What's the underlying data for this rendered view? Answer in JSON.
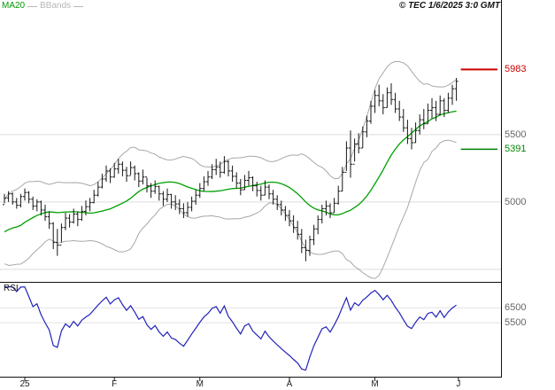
{
  "header": {
    "legend": [
      {
        "label": "MA20",
        "color": "#009900"
      },
      {
        "label": "BBands",
        "color": "#b8b8b8"
      }
    ],
    "copyright": "© TEC 1/6/2025 3:0 GMT"
  },
  "rsi_label": "RSI",
  "chart_data": [
    {
      "type": "candlestick",
      "name": "price-panel",
      "bar_format": [
        "high",
        "low",
        "close"
      ],
      "bar_color": "#161616",
      "ylim": [
        4420,
        6400
      ],
      "gridlines": [
        5500,
        5000,
        4500
      ],
      "y_labels": [
        {
          "text": "5983",
          "value": 5983,
          "color": "#cc0000"
        },
        {
          "text": "5500",
          "value": 5500,
          "color": "#666666"
        },
        {
          "text": "5391",
          "value": 5391,
          "color": "#008800"
        },
        {
          "text": "5000",
          "value": 5000,
          "color": "#666666"
        }
      ],
      "hlines": [
        {
          "name": "resistance",
          "value": 5983,
          "color": "#cc0000",
          "width": 2
        },
        {
          "name": "support",
          "value": 5391,
          "color": "#008000",
          "width": 1.5
        }
      ],
      "indicators": [
        {
          "name": "MA20",
          "type": "sma",
          "period": 20,
          "color": "#00a000"
        },
        {
          "name": "BBands",
          "type": "bollinger",
          "period": 20,
          "stddev": 2,
          "color": "#a8a8a8"
        }
      ],
      "x_ticks": [
        {
          "label": "25",
          "index": 5
        },
        {
          "label": "F",
          "index": 27
        },
        {
          "label": "M",
          "index": 48
        },
        {
          "label": "A",
          "index": 70
        },
        {
          "label": "M",
          "index": 91
        },
        {
          "label": "J",
          "index": 111.5
        }
      ],
      "seed_closes": [
        4620,
        4650,
        4640,
        4680,
        4710,
        4690,
        4730,
        4760,
        4740,
        4780,
        4810,
        4840,
        4870,
        4920,
        4980
      ],
      "bars": [
        [
          5060,
          4990,
          5030
        ],
        [
          5080,
          5000,
          5060
        ],
        [
          5070,
          4980,
          5000
        ],
        [
          5030,
          4950,
          4975
        ],
        [
          5060,
          4960,
          5040
        ],
        [
          5100,
          5010,
          5070
        ],
        [
          5080,
          4990,
          5020
        ],
        [
          5040,
          4940,
          4970
        ],
        [
          5020,
          4930,
          5000
        ],
        [
          5010,
          4900,
          4940
        ],
        [
          4980,
          4860,
          4890
        ],
        [
          4930,
          4800,
          4840
        ],
        [
          4850,
          4650,
          4700
        ],
        [
          4800,
          4600,
          4680
        ],
        [
          4840,
          4700,
          4810
        ],
        [
          4920,
          4790,
          4880
        ],
        [
          4910,
          4810,
          4850
        ],
        [
          4950,
          4840,
          4910
        ],
        [
          4930,
          4820,
          4870
        ],
        [
          4970,
          4860,
          4930
        ],
        [
          5010,
          4900,
          4965
        ],
        [
          5030,
          4930,
          4995
        ],
        [
          5090,
          4990,
          5050
        ],
        [
          5150,
          5040,
          5110
        ],
        [
          5210,
          5100,
          5170
        ],
        [
          5270,
          5150,
          5230
        ],
        [
          5250,
          5140,
          5185
        ],
        [
          5290,
          5180,
          5245
        ],
        [
          5320,
          5210,
          5280
        ],
        [
          5300,
          5190,
          5235
        ],
        [
          5260,
          5150,
          5195
        ],
        [
          5300,
          5200,
          5255
        ],
        [
          5270,
          5160,
          5210
        ],
        [
          5220,
          5110,
          5155
        ],
        [
          5240,
          5130,
          5185
        ],
        [
          5180,
          5070,
          5120
        ],
        [
          5140,
          5030,
          5080
        ],
        [
          5160,
          5060,
          5115
        ],
        [
          5120,
          5010,
          5060
        ],
        [
          5080,
          4970,
          5020
        ],
        [
          5100,
          5000,
          5055
        ],
        [
          5060,
          4950,
          5000
        ],
        [
          5050,
          4940,
          4985
        ],
        [
          5020,
          4910,
          4950
        ],
        [
          4990,
          4880,
          4920
        ],
        [
          5000,
          4890,
          4960
        ],
        [
          5040,
          4930,
          5005
        ],
        [
          5090,
          4980,
          5050
        ],
        [
          5140,
          5030,
          5100
        ],
        [
          5190,
          5080,
          5150
        ],
        [
          5230,
          5120,
          5185
        ],
        [
          5280,
          5170,
          5240
        ],
        [
          5320,
          5200,
          5260
        ],
        [
          5300,
          5180,
          5220
        ],
        [
          5340,
          5210,
          5300
        ],
        [
          5310,
          5190,
          5230
        ],
        [
          5270,
          5150,
          5190
        ],
        [
          5220,
          5100,
          5140
        ],
        [
          5170,
          5050,
          5090
        ],
        [
          5200,
          5090,
          5160
        ],
        [
          5230,
          5120,
          5180
        ],
        [
          5190,
          5080,
          5120
        ],
        [
          5150,
          5040,
          5085
        ],
        [
          5120,
          5010,
          5050
        ],
        [
          5160,
          5050,
          5110
        ],
        [
          5130,
          5020,
          5060
        ],
        [
          5090,
          4980,
          5020
        ],
        [
          5050,
          4940,
          4980
        ],
        [
          5010,
          4900,
          4940
        ],
        [
          4970,
          4860,
          4900
        ],
        [
          4940,
          4820,
          4860
        ],
        [
          4900,
          4770,
          4810
        ],
        [
          4860,
          4720,
          4760
        ],
        [
          4800,
          4620,
          4660
        ],
        [
          4720,
          4560,
          4640
        ],
        [
          4750,
          4600,
          4720
        ],
        [
          4830,
          4680,
          4800
        ],
        [
          4900,
          4760,
          4870
        ],
        [
          4980,
          4840,
          4950
        ],
        [
          5010,
          4900,
          4970
        ],
        [
          4990,
          4880,
          4920
        ],
        [
          5030,
          4920,
          4990
        ],
        [
          5120,
          4980,
          5080
        ],
        [
          5260,
          5080,
          5220
        ],
        [
          5450,
          5230,
          5400
        ],
        [
          5530,
          5180,
          5280
        ],
        [
          5470,
          5300,
          5430
        ],
        [
          5510,
          5360,
          5400
        ],
        [
          5560,
          5400,
          5520
        ],
        [
          5640,
          5480,
          5600
        ],
        [
          5750,
          5580,
          5710
        ],
        [
          5830,
          5660,
          5790
        ],
        [
          5870,
          5710,
          5750
        ],
        [
          5800,
          5650,
          5700
        ],
        [
          5850,
          5700,
          5810
        ],
        [
          5880,
          5720,
          5760
        ],
        [
          5810,
          5660,
          5690
        ],
        [
          5750,
          5600,
          5630
        ],
        [
          5690,
          5520,
          5550
        ],
        [
          5610,
          5430,
          5470
        ],
        [
          5550,
          5390,
          5440
        ],
        [
          5590,
          5440,
          5530
        ],
        [
          5650,
          5500,
          5610
        ],
        [
          5690,
          5540,
          5580
        ],
        [
          5730,
          5580,
          5680
        ],
        [
          5770,
          5620,
          5700
        ],
        [
          5750,
          5600,
          5650
        ],
        [
          5790,
          5640,
          5750
        ],
        [
          5770,
          5630,
          5680
        ],
        [
          5810,
          5660,
          5770
        ],
        [
          5870,
          5720,
          5840
        ],
        [
          5920,
          5750,
          5895
        ]
      ]
    },
    {
      "type": "line",
      "name": "rsi-panel",
      "derived": "rsi(14) of price closes",
      "period": 14,
      "color": "#2222bb",
      "ylim": [
        20,
        80
      ],
      "gridlines": [
        65,
        55
      ],
      "y_labels": [
        {
          "text": "6500",
          "value": 65,
          "color": "#666666"
        },
        {
          "text": "5500",
          "value": 55,
          "color": "#666666"
        }
      ]
    }
  ]
}
